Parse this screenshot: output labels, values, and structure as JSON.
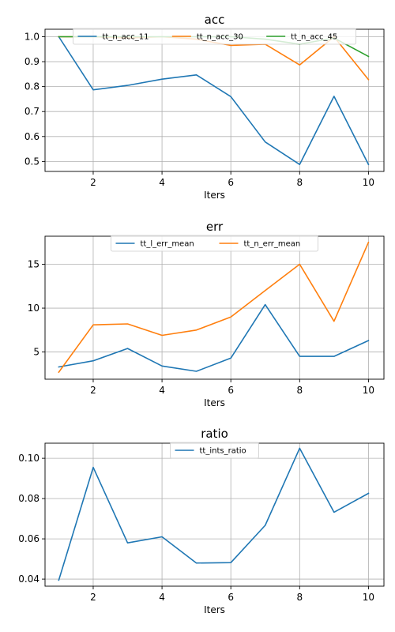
{
  "chart_data": [
    {
      "type": "line",
      "title": "acc",
      "xlabel": "Iters",
      "ylabel": "",
      "x": [
        1,
        2,
        3,
        4,
        5,
        6,
        7,
        8,
        9,
        10
      ],
      "xlim": [
        0.6,
        10.45
      ],
      "ylim": [
        0.46,
        1.03
      ],
      "xticks": [
        2,
        4,
        6,
        8,
        10
      ],
      "yticks": [
        0.5,
        0.6,
        0.7,
        0.8,
        0.9,
        1.0
      ],
      "ytick_decimals": 1,
      "grid": true,
      "legend": "top-center",
      "legend_columns": 3,
      "series": [
        {
          "name": "tt_n_acc_11",
          "color": "#1f77b4",
          "values": [
            1.0,
            0.787,
            0.805,
            0.83,
            0.847,
            0.76,
            0.578,
            0.488,
            0.761,
            0.488
          ]
        },
        {
          "name": "tt_n_acc_30",
          "color": "#ff7f0e",
          "values": [
            1.0,
            1.0,
            0.995,
            1.0,
            0.99,
            0.965,
            0.97,
            0.887,
            1.0,
            0.828
          ]
        },
        {
          "name": "tt_n_acc_45",
          "color": "#2ca02c",
          "values": [
            1.0,
            1.0,
            1.0,
            1.0,
            1.0,
            1.0,
            0.99,
            0.97,
            0.995,
            0.921
          ]
        }
      ]
    },
    {
      "type": "line",
      "title": "err",
      "xlabel": "Iters",
      "ylabel": "",
      "x": [
        1,
        2,
        3,
        4,
        5,
        6,
        7,
        8,
        9,
        10
      ],
      "xlim": [
        0.6,
        10.45
      ],
      "ylim": [
        1.9,
        18.2
      ],
      "xticks": [
        2,
        4,
        6,
        8,
        10
      ],
      "yticks": [
        5,
        10,
        15
      ],
      "ytick_decimals": 0,
      "grid": true,
      "legend": "top-center",
      "legend_columns": 2,
      "series": [
        {
          "name": "tt_l_err_mean",
          "color": "#1f77b4",
          "values": [
            3.3,
            4.0,
            5.4,
            3.4,
            2.8,
            4.3,
            10.4,
            4.5,
            4.5,
            6.3
          ]
        },
        {
          "name": "tt_n_err_mean",
          "color": "#ff7f0e",
          "values": [
            2.7,
            8.1,
            8.2,
            6.9,
            7.5,
            9.0,
            12.0,
            15.0,
            8.5,
            17.5
          ]
        }
      ]
    },
    {
      "type": "line",
      "title": "ratio",
      "xlabel": "Iters",
      "ylabel": "",
      "x": [
        1,
        2,
        3,
        4,
        5,
        6,
        7,
        8,
        9,
        10
      ],
      "xlim": [
        0.6,
        10.45
      ],
      "ylim": [
        0.0365,
        0.1075
      ],
      "xticks": [
        2,
        4,
        6,
        8,
        10
      ],
      "yticks": [
        0.04,
        0.06,
        0.08,
        0.1
      ],
      "ytick_decimals": 2,
      "grid": true,
      "legend": "top-center",
      "legend_columns": 1,
      "series": [
        {
          "name": "tt_ints_ratio",
          "color": "#1f77b4",
          "values": [
            0.0395,
            0.0955,
            0.058,
            0.061,
            0.048,
            0.0482,
            0.0667,
            0.105,
            0.0732,
            0.0826
          ]
        }
      ]
    }
  ]
}
